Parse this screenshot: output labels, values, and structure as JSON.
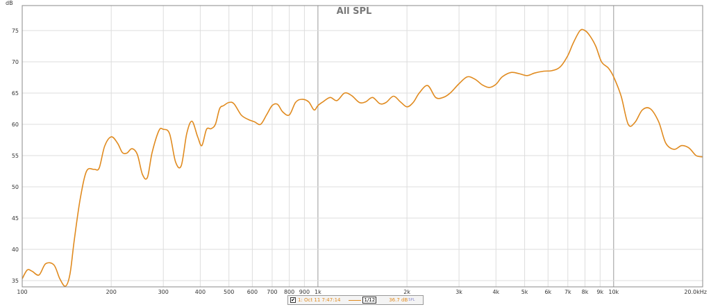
{
  "chart_data": {
    "type": "line",
    "title": "All SPL",
    "ylabel": "dB",
    "xscale": "log",
    "xlim": [
      100,
      20000
    ],
    "ylim": [
      34,
      79
    ],
    "grid": true,
    "x_ticks": [
      {
        "v": 100,
        "label": "100"
      },
      {
        "v": 200,
        "label": "200"
      },
      {
        "v": 300,
        "label": "300"
      },
      {
        "v": 400,
        "label": "400"
      },
      {
        "v": 500,
        "label": "500"
      },
      {
        "v": 600,
        "label": "600"
      },
      {
        "v": 700,
        "label": "700"
      },
      {
        "v": 800,
        "label": "800"
      },
      {
        "v": 900,
        "label": "900"
      },
      {
        "v": 1000,
        "label": "1k"
      },
      {
        "v": 2000,
        "label": "2k"
      },
      {
        "v": 3000,
        "label": "3k"
      },
      {
        "v": 4000,
        "label": "4k"
      },
      {
        "v": 5000,
        "label": "5k"
      },
      {
        "v": 6000,
        "label": "6k"
      },
      {
        "v": 7000,
        "label": "7k"
      },
      {
        "v": 8000,
        "label": "8k"
      },
      {
        "v": 9000,
        "label": "9k"
      },
      {
        "v": 10000,
        "label": "10k"
      },
      {
        "v": 20000,
        "label": "20.0kHz"
      }
    ],
    "y_ticks": [
      35,
      40,
      45,
      50,
      55,
      60,
      65,
      70,
      75
    ],
    "series": [
      {
        "name": "1: Oct 11 7:47:14",
        "color": "#e08a1e",
        "x": [
          100,
          104,
          108,
          114,
          120,
          128,
          134,
          140,
          145,
          150,
          157,
          165,
          175,
          182,
          190,
          200,
          210,
          218,
          226,
          235,
          245,
          255,
          265,
          275,
          290,
          300,
          315,
          330,
          345,
          360,
          375,
          392,
          405,
          420,
          435,
          450,
          465,
          480,
          500,
          520,
          550,
          580,
          610,
          640,
          670,
          700,
          730,
          760,
          800,
          840,
          880,
          930,
          970,
          1000,
          1040,
          1100,
          1160,
          1230,
          1300,
          1380,
          1450,
          1530,
          1620,
          1700,
          1800,
          1900,
          2000,
          2100,
          2200,
          2350,
          2500,
          2650,
          2800,
          3000,
          3200,
          3400,
          3600,
          3800,
          4000,
          4200,
          4500,
          4800,
          5100,
          5400,
          5800,
          6200,
          6600,
          7000,
          7300,
          7700,
          8000,
          8300,
          8700,
          9100,
          9600,
          10000,
          10600,
          11200,
          11800,
          12500,
          13300,
          14200,
          15000,
          16000,
          17000,
          18000,
          19000,
          20000
        ],
        "y": [
          35.3,
          36.7,
          36.5,
          35.9,
          37.7,
          37.5,
          35.3,
          34.1,
          36.0,
          41.5,
          48.0,
          52.5,
          52.8,
          53.0,
          56.5,
          58.0,
          57.0,
          55.5,
          55.4,
          56.1,
          55.2,
          52.0,
          51.5,
          55.5,
          59.0,
          59.2,
          58.5,
          54.0,
          53.4,
          58.5,
          60.5,
          58.0,
          56.6,
          59.2,
          59.3,
          60.0,
          62.5,
          63.0,
          63.5,
          63.3,
          61.5,
          60.8,
          60.4,
          60.0,
          61.5,
          63.0,
          63.2,
          62.0,
          61.5,
          63.5,
          64.0,
          63.6,
          62.3,
          63.0,
          63.6,
          64.3,
          63.8,
          65.0,
          64.6,
          63.5,
          63.6,
          64.3,
          63.3,
          63.5,
          64.5,
          63.6,
          62.8,
          63.5,
          65.0,
          66.2,
          64.3,
          64.3,
          65.0,
          66.5,
          67.6,
          67.2,
          66.3,
          65.9,
          66.4,
          67.6,
          68.3,
          68.1,
          67.8,
          68.2,
          68.5,
          68.6,
          69.2,
          71.0,
          73.0,
          75.0,
          75.0,
          74.2,
          72.5,
          70.0,
          69.0,
          67.6,
          64.5,
          60.0,
          60.3,
          62.3,
          62.5,
          60.4,
          57.0,
          56.0,
          56.6,
          56.2,
          55.0,
          54.8
        ]
      }
    ],
    "legend_placement": "bottom-center"
  },
  "legend": {
    "checked_mark": "✔",
    "entry_label": "1: Oct 11 7:47:14",
    "smoothing": "1/12",
    "value": "36.7 dB",
    "value_unit": "SPL"
  }
}
